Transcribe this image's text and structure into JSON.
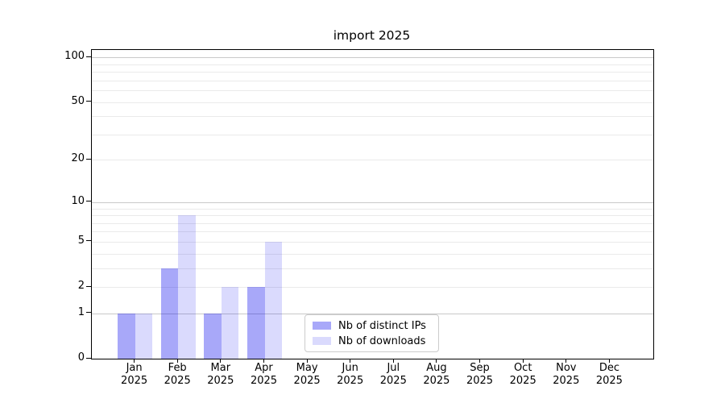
{
  "title": "import 2025",
  "chart_data": {
    "type": "bar",
    "title": "import 2025",
    "xlabel": "",
    "ylabel": "",
    "categories": [
      "Jan 2025",
      "Feb 2025",
      "Mar 2025",
      "Apr 2025",
      "May 2025",
      "Jun 2025",
      "Jul 2025",
      "Aug 2025",
      "Sep 2025",
      "Oct 2025",
      "Nov 2025",
      "Dec 2025"
    ],
    "series": [
      {
        "name": "Nb of distinct IPs",
        "color": "#0000ee",
        "alpha": 0.34,
        "values": [
          1,
          3,
          1,
          2,
          0,
          0,
          0,
          0,
          0,
          0,
          0,
          0
        ]
      },
      {
        "name": "Nb of downloads",
        "color": "#0000ee",
        "alpha": 0.145,
        "values": [
          1,
          8,
          2,
          5,
          0,
          0,
          0,
          0,
          0,
          0,
          0,
          0
        ]
      }
    ],
    "y_scale": "log1p",
    "y_axis": {
      "ticks": [
        0,
        1,
        2,
        5,
        10,
        20,
        50,
        100
      ],
      "top_value": 112,
      "major_gridlines": [
        1,
        10,
        100
      ],
      "minor_gridlines": [
        2,
        3,
        4,
        5,
        6,
        7,
        8,
        9,
        20,
        30,
        40,
        50,
        60,
        70,
        80,
        90
      ]
    },
    "grid": true,
    "legend_position": "lower center"
  },
  "colors": {
    "background": "#ffffff",
    "spine": "#000000",
    "text": "#000000",
    "grid_minor": "#eaeaea",
    "grid_major": "#c9c9c9",
    "legend_border": "#cccccc"
  }
}
